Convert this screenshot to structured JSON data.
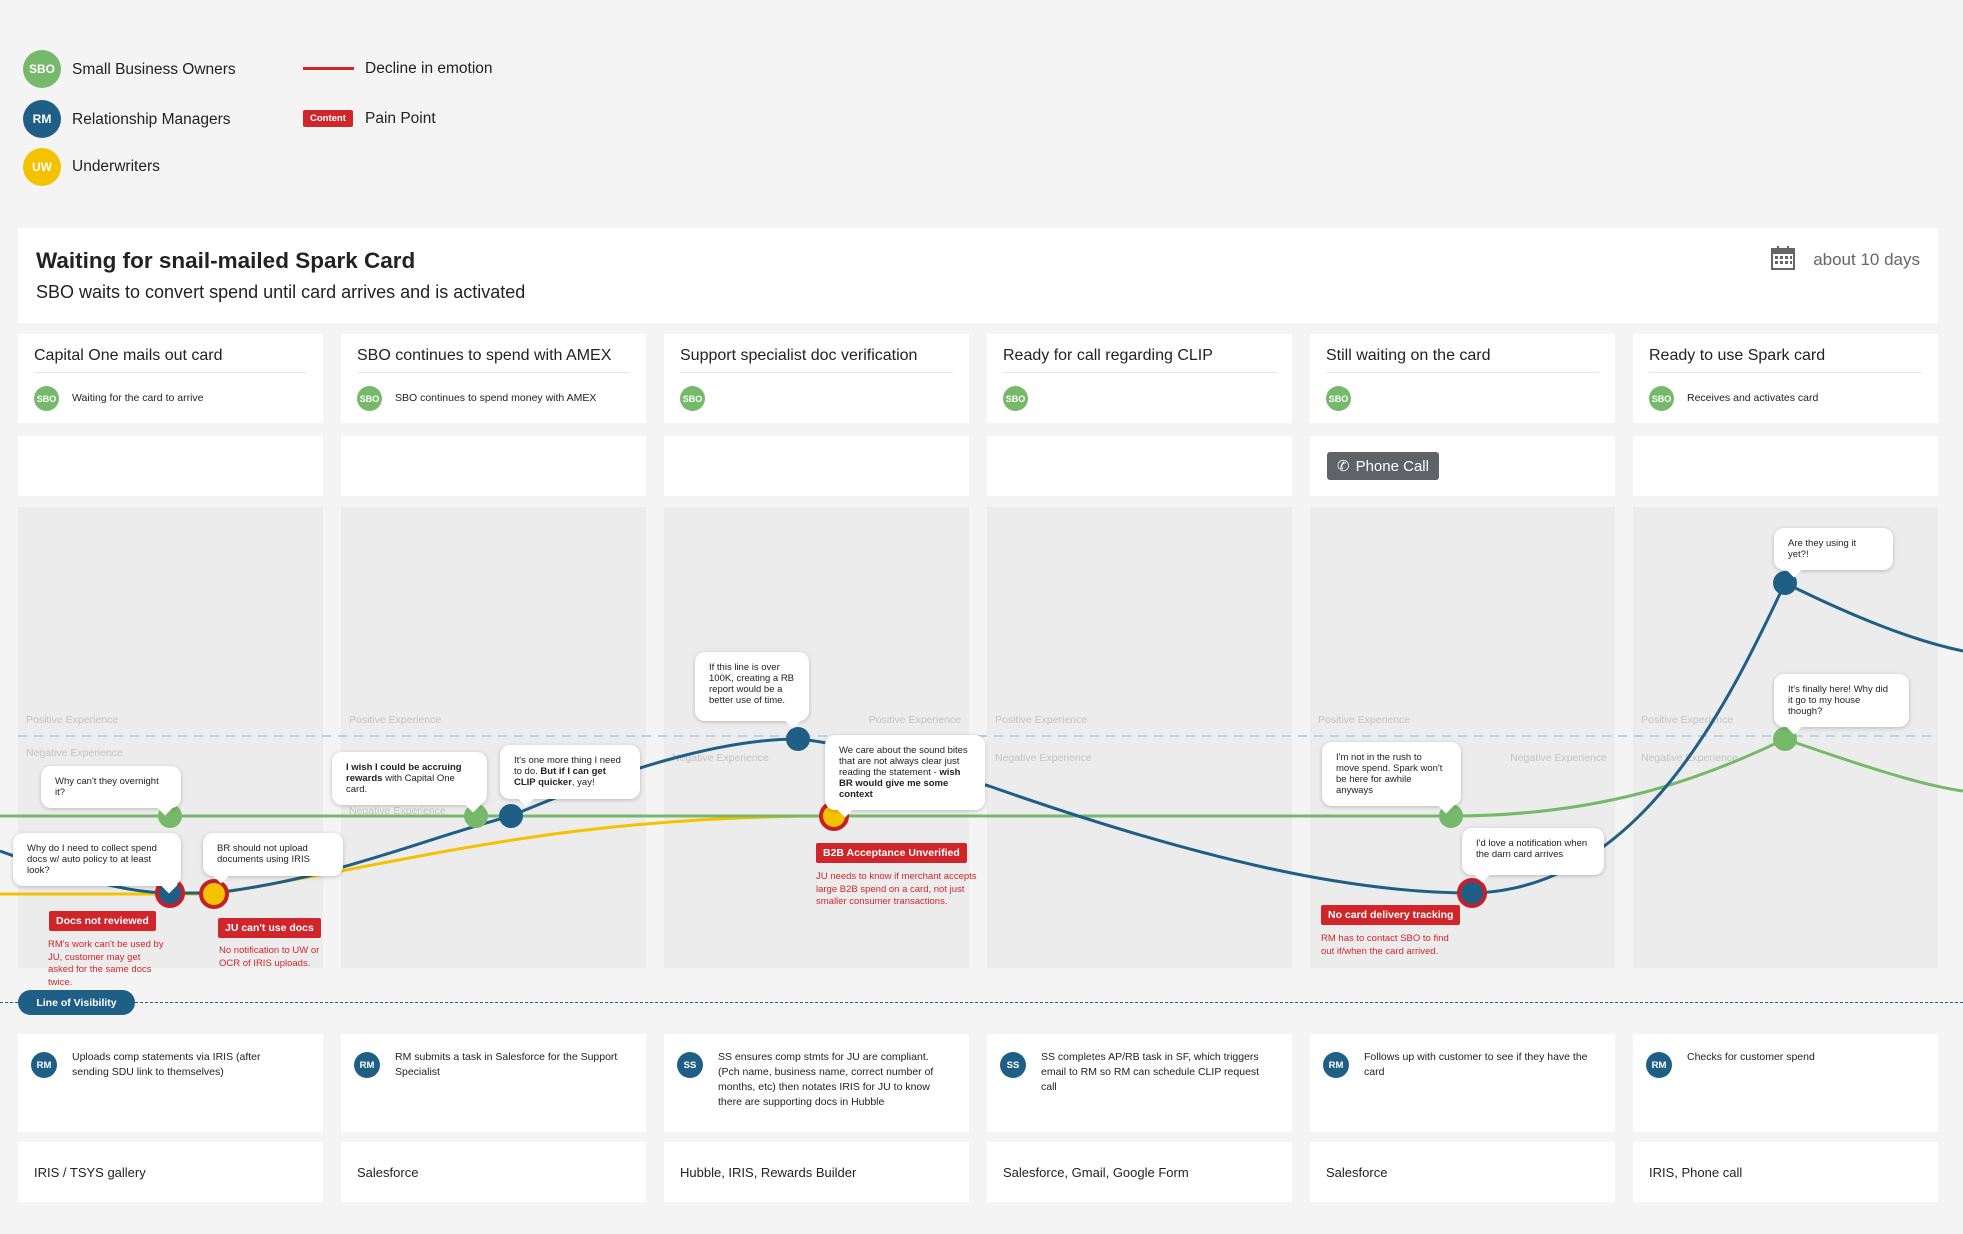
{
  "colors": {
    "sbo": "#76b96a",
    "rm": "#1f5f85",
    "uw": "#f5c200",
    "ss": "#1f5f85",
    "pain": "#d0262b",
    "background": "#f4f4f4"
  },
  "legend": {
    "personas": [
      {
        "abbr": "SBO",
        "label": "Small Business Owners"
      },
      {
        "abbr": "RM",
        "label": "Relationship Managers"
      },
      {
        "abbr": "UW",
        "label": "Underwriters"
      }
    ],
    "decline_label": "Decline in emotion",
    "pain_badge": "Content",
    "pain_label": "Pain Point"
  },
  "header": {
    "title": "Waiting for snail-mailed Spark Card",
    "subtitle": "SBO waits to convert spend until card arrives and is activated",
    "duration_icon": "calendar-icon",
    "duration": "about 10 days"
  },
  "axis": {
    "positive": "Positive Experience",
    "negative": "Negative Experience"
  },
  "stages": [
    {
      "title": "Capital One mails out card",
      "avatar": "SBO",
      "text": "Waiting for the card to arrive",
      "channel": "",
      "action_avatar": "RM",
      "action": "Uploads comp statements via IRIS (after sending SDU link to themselves)",
      "tools": "IRIS / TSYS gallery"
    },
    {
      "title": "SBO continues to spend with AMEX",
      "avatar": "SBO",
      "text": "SBO continues to spend money with AMEX",
      "channel": "",
      "action_avatar": "RM",
      "action": "RM submits a task in Salesforce for the Support Specialist",
      "tools": "Salesforce"
    },
    {
      "title": "Support specialist doc verification",
      "avatar": "SBO",
      "text": "",
      "channel": "",
      "action_avatar": "SS",
      "action": "SS ensures comp stmts for JU are compliant. (Pch name, business name, correct number of months, etc) then notates IRIS for JU to know there are supporting docs in Hubble",
      "tools": "Hubble, IRIS, Rewards Builder"
    },
    {
      "title": "Ready for call regarding CLIP",
      "avatar": "SBO",
      "text": "",
      "channel": "",
      "action_avatar": "SS",
      "action": "SS completes AP/RB task in SF, which triggers email to RM so RM can schedule CLIP request call",
      "tools": "Salesforce, Gmail, Google Form"
    },
    {
      "title": "Still waiting on the card",
      "avatar": "SBO",
      "text": "",
      "channel": "Phone Call",
      "action_avatar": "RM",
      "action": "Follows up with customer to see if they have the card",
      "tools": "Salesforce"
    },
    {
      "title": "Ready to use Spark card",
      "avatar": "SBO",
      "text": "Receives and activates card",
      "channel": "",
      "action_avatar": "RM",
      "action": "Checks for customer spend",
      "tools": "IRIS, Phone call"
    }
  ],
  "bubbles": [
    {
      "parts": [
        {
          "t": "Why can't they overnight it?"
        }
      ]
    },
    {
      "parts": [
        {
          "t": "Why do I need to collect spend docs w/ auto policy to at least look?"
        }
      ]
    },
    {
      "parts": [
        {
          "t": "BR should not upload documents using IRIS"
        }
      ]
    },
    {
      "parts": [
        {
          "t": "I wish I could be accruing rewards",
          "b": true
        },
        {
          "t": " with Capital One card."
        }
      ]
    },
    {
      "parts": [
        {
          "t": "It's one more thing I need to do. "
        },
        {
          "t": "But if I can get CLIP quicker",
          "b": true
        },
        {
          "t": ", yay!"
        }
      ]
    },
    {
      "parts": [
        {
          "t": "If this line is over 100K, creating a RB report would be a better use of time."
        }
      ]
    },
    {
      "parts": [
        {
          "t": "We care about the sound bites that are not always clear just reading the statement - "
        },
        {
          "t": "wish BR would give me some context",
          "b": true
        }
      ]
    },
    {
      "parts": [
        {
          "t": "I'm not in the rush to move spend. Spark won't be here for awhile anyways"
        }
      ]
    },
    {
      "parts": [
        {
          "t": "I'd love a notification when the darn card arrives"
        }
      ]
    },
    {
      "parts": [
        {
          "t": "Are they using it yet?!"
        }
      ]
    },
    {
      "parts": [
        {
          "t": "It's finally here! Why did it go to my house though?"
        }
      ]
    }
  ],
  "pain_points": [
    {
      "label": "Docs not reviewed",
      "desc": "RM's work can't be used by JU, customer may get asked for the same docs twice."
    },
    {
      "label": "JU can't use docs",
      "desc": "No notification to UW or OCR of IRIS uploads."
    },
    {
      "label": "B2B Acceptance Unverified",
      "desc": "JU needs to know if merchant accepts large B2B spend on a card, not just smaller consumer transactions."
    },
    {
      "label": "No card delivery tracking",
      "desc": "RM has to contact SBO to find out if/when the card arrived."
    }
  ],
  "line_of_visibility": "Line of Visibility"
}
